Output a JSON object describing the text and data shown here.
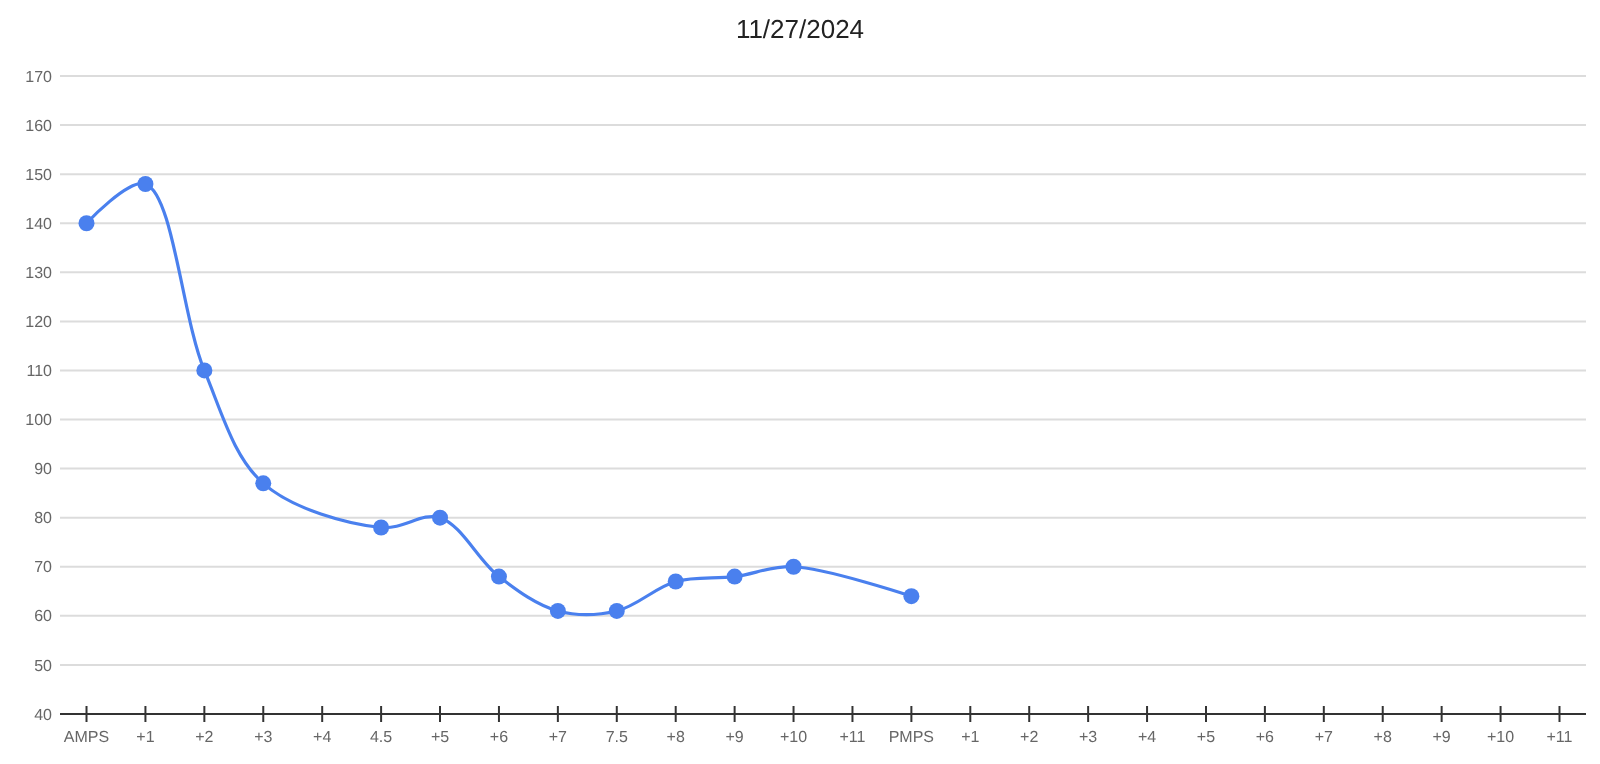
{
  "chart_data": {
    "type": "line",
    "title": "11/27/2024",
    "categories": [
      "AMPS",
      "+1",
      "+2",
      "+3",
      "+4",
      "4.5",
      "+5",
      "+6",
      "+7",
      "7.5",
      "+8",
      "+9",
      "+10",
      "+11",
      "PMPS",
      "+1",
      "+2",
      "+3",
      "+4",
      "+5",
      "+6",
      "+7",
      "+8",
      "+9",
      "+10",
      "+11"
    ],
    "series": [
      {
        "color": "#4a80ee",
        "values": [
          140,
          148,
          110,
          87,
          null,
          78,
          80,
          68,
          61,
          61,
          67,
          68,
          70,
          null,
          64,
          null,
          null,
          null,
          null,
          null,
          null,
          null,
          null,
          null,
          null,
          null
        ]
      }
    ],
    "ylim": [
      40,
      170
    ],
    "yticks": [
      40,
      50,
      60,
      70,
      80,
      90,
      100,
      110,
      120,
      130,
      140,
      150,
      160,
      170
    ],
    "grid": "y",
    "marker": "circle",
    "line_style": "solid"
  }
}
